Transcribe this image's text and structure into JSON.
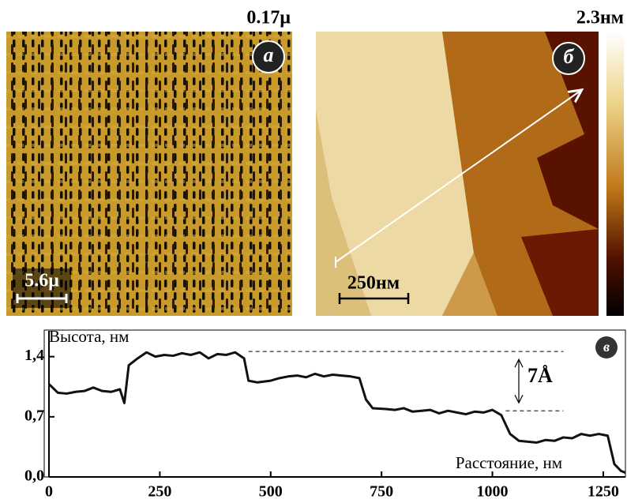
{
  "panel_a": {
    "label": "а",
    "max": "0.17μ",
    "scale_bar": "5.6μ"
  },
  "panel_b": {
    "label": "б",
    "max": "2.3нм",
    "scale_bar": "250нм"
  },
  "chart_data": {
    "type": "line",
    "panel_label": "в",
    "y_label": "Высота, нм",
    "x_label": "Расстояние, нм",
    "annotation": "7Å",
    "color": "#111111",
    "x": [
      0,
      20,
      40,
      60,
      80,
      100,
      120,
      140,
      160,
      170,
      180,
      200,
      220,
      240,
      260,
      280,
      300,
      320,
      340,
      360,
      380,
      400,
      420,
      440,
      450,
      470,
      500,
      520,
      540,
      560,
      580,
      600,
      620,
      640,
      660,
      680,
      700,
      715,
      730,
      760,
      780,
      800,
      820,
      840,
      860,
      880,
      900,
      920,
      940,
      960,
      980,
      1000,
      1020,
      1040,
      1060,
      1080,
      1100,
      1120,
      1140,
      1160,
      1180,
      1200,
      1220,
      1240,
      1260,
      1275,
      1290,
      1300
    ],
    "values": [
      1.08,
      0.98,
      0.97,
      0.99,
      1.0,
      1.04,
      1.0,
      0.99,
      1.02,
      0.86,
      1.3,
      1.38,
      1.45,
      1.4,
      1.42,
      1.41,
      1.44,
      1.42,
      1.45,
      1.38,
      1.43,
      1.42,
      1.45,
      1.38,
      1.12,
      1.1,
      1.12,
      1.15,
      1.17,
      1.18,
      1.16,
      1.2,
      1.17,
      1.19,
      1.18,
      1.17,
      1.15,
      0.9,
      0.8,
      0.79,
      0.78,
      0.8,
      0.76,
      0.77,
      0.78,
      0.74,
      0.77,
      0.75,
      0.73,
      0.76,
      0.75,
      0.78,
      0.72,
      0.5,
      0.42,
      0.41,
      0.4,
      0.43,
      0.42,
      0.46,
      0.45,
      0.5,
      0.48,
      0.5,
      0.48,
      0.15,
      0.07,
      0.05
    ],
    "reference_lines": [
      {
        "y": 1.46,
        "x": [
          450,
          1160
        ]
      },
      {
        "y": 0.77,
        "x": [
          1030,
          1160
        ]
      }
    ],
    "xlim": [
      0,
      1300
    ],
    "ylim": [
      0,
      1.7
    ],
    "xticks": [
      0,
      250,
      500,
      750,
      1000,
      1250
    ],
    "yticks": [
      {
        "value": 0,
        "label": "0,0"
      },
      {
        "value": 0.7,
        "label": "0,7"
      },
      {
        "value": 1.4,
        "label": "1,4"
      }
    ]
  }
}
